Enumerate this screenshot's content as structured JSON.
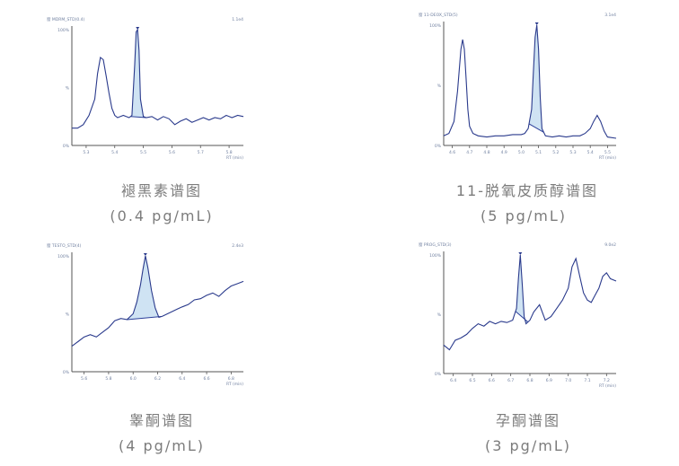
{
  "chart_data": [
    {
      "type": "line",
      "header_left": "窗 MDRM_STD(0.4)",
      "header_right": "1.1e4",
      "y_max_label": "100%",
      "y_mid_label": "%",
      "y_min_label": "0%",
      "x_axis_label": "RT (min)",
      "tick_labels": [
        "5.3",
        "5.4",
        "5.5",
        "5.6",
        "5.7",
        "5.8"
      ],
      "xlim": [
        5.25,
        5.85
      ],
      "ylim": [
        0,
        100
      ],
      "x": [
        5.25,
        5.27,
        5.29,
        5.31,
        5.33,
        5.34,
        5.35,
        5.36,
        5.37,
        5.38,
        5.39,
        5.4,
        5.41,
        5.42,
        5.43,
        5.44,
        5.45,
        5.46,
        5.47,
        5.475,
        5.48,
        5.485,
        5.49,
        5.5,
        5.51,
        5.53,
        5.55,
        5.57,
        5.59,
        5.61,
        5.63,
        5.65,
        5.67,
        5.69,
        5.71,
        5.73,
        5.75,
        5.77,
        5.79,
        5.81,
        5.83,
        5.85
      ],
      "y": [
        15,
        15,
        18,
        26,
        40,
        62,
        76,
        74,
        60,
        45,
        32,
        26,
        24,
        25,
        26,
        25,
        24,
        26,
        70,
        98,
        100,
        82,
        40,
        25,
        24,
        25,
        22,
        25,
        23,
        18,
        21,
        23,
        20,
        22,
        24,
        22,
        24,
        23,
        26,
        24,
        26,
        25
      ],
      "shaded_peak": [
        5.455,
        5.51
      ],
      "caption": "褪黑素谱图",
      "concentration": "(0.4 pg/mL)"
    },
    {
      "type": "line",
      "header_left": "窗 11-DEOX_STD(5)",
      "header_right": "3.1e4",
      "y_max_label": "100%",
      "y_mid_label": "%",
      "y_min_label": "0%",
      "x_axis_label": "RT (min)",
      "tick_labels": [
        "4.6",
        "4.7",
        "4.8",
        "4.9",
        "5.0",
        "5.1",
        "5.2",
        "5.3",
        "5.4",
        "5.5"
      ],
      "xlim": [
        4.55,
        5.55
      ],
      "ylim": [
        0,
        100
      ],
      "x": [
        4.55,
        4.58,
        4.61,
        4.63,
        4.65,
        4.66,
        4.67,
        4.68,
        4.69,
        4.7,
        4.72,
        4.75,
        4.8,
        4.85,
        4.9,
        4.95,
        5.0,
        5.02,
        5.04,
        5.06,
        5.07,
        5.08,
        5.09,
        5.1,
        5.11,
        5.12,
        5.14,
        5.18,
        5.22,
        5.26,
        5.3,
        5.34,
        5.37,
        5.4,
        5.42,
        5.44,
        5.46,
        5.48,
        5.5,
        5.55
      ],
      "y": [
        8,
        10,
        20,
        45,
        80,
        88,
        80,
        55,
        30,
        16,
        10,
        8,
        7,
        8,
        8,
        9,
        9,
        10,
        14,
        30,
        60,
        90,
        100,
        80,
        40,
        14,
        8,
        7,
        8,
        7,
        8,
        8,
        10,
        14,
        20,
        25,
        20,
        12,
        7,
        6
      ],
      "shaded_peak": [
        5.045,
        5.13
      ],
      "caption": "11-脱氧皮质醇谱图",
      "concentration": "(5 pg/mL)"
    },
    {
      "type": "line",
      "header_left": "窗 TESTO_STD(4)",
      "header_right": "2.4e3",
      "y_max_label": "100%",
      "y_mid_label": "%",
      "y_min_label": "0%",
      "x_axis_label": "RT (min)",
      "tick_labels": [
        "5.6",
        "5.8",
        "6.0",
        "6.2",
        "6.4",
        "6.6",
        "6.8"
      ],
      "xlim": [
        5.5,
        6.9
      ],
      "ylim": [
        0,
        100
      ],
      "x": [
        5.5,
        5.55,
        5.6,
        5.65,
        5.7,
        5.75,
        5.8,
        5.85,
        5.9,
        5.95,
        6.0,
        6.03,
        6.06,
        6.08,
        6.1,
        6.12,
        6.15,
        6.18,
        6.21,
        6.24,
        6.28,
        6.32,
        6.36,
        6.4,
        6.45,
        6.5,
        6.55,
        6.6,
        6.65,
        6.7,
        6.75,
        6.8,
        6.85,
        6.9
      ],
      "y": [
        22,
        26,
        30,
        32,
        30,
        34,
        38,
        44,
        46,
        45,
        50,
        60,
        75,
        88,
        100,
        90,
        70,
        55,
        47,
        48,
        50,
        52,
        54,
        56,
        58,
        62,
        63,
        66,
        68,
        65,
        70,
        74,
        76,
        78
      ],
      "shaded_peak": [
        5.95,
        6.23
      ],
      "caption": "睾酮谱图",
      "concentration": "(4 pg/mL)"
    },
    {
      "type": "line",
      "header_left": "窗 PROG_STD(3)",
      "header_right": "9.0e2",
      "y_max_label": "100%",
      "y_mid_label": "%",
      "y_min_label": "0%",
      "x_axis_label": "RT (min)",
      "tick_labels": [
        "6.4",
        "6.5",
        "6.6",
        "6.7",
        "6.8",
        "6.9",
        "7.0",
        "7.1",
        "7.2"
      ],
      "xlim": [
        6.35,
        7.25
      ],
      "ylim": [
        0,
        100
      ],
      "x": [
        6.35,
        6.38,
        6.41,
        6.44,
        6.47,
        6.5,
        6.53,
        6.56,
        6.59,
        6.62,
        6.65,
        6.68,
        6.71,
        6.73,
        6.74,
        6.75,
        6.76,
        6.77,
        6.78,
        6.8,
        6.82,
        6.85,
        6.88,
        6.91,
        6.94,
        6.97,
        7.0,
        7.02,
        7.04,
        7.06,
        7.08,
        7.1,
        7.12,
        7.14,
        7.16,
        7.18,
        7.2,
        7.22,
        7.25
      ],
      "y": [
        24,
        20,
        28,
        30,
        33,
        38,
        42,
        40,
        44,
        42,
        44,
        43,
        45,
        55,
        80,
        100,
        75,
        48,
        42,
        45,
        52,
        58,
        45,
        48,
        55,
        62,
        72,
        90,
        97,
        82,
        68,
        62,
        60,
        66,
        72,
        82,
        85,
        80,
        78
      ],
      "shaded_peak": [
        6.725,
        6.79
      ],
      "caption": "孕酮谱图",
      "concentration": "(3 pg/mL)"
    }
  ]
}
